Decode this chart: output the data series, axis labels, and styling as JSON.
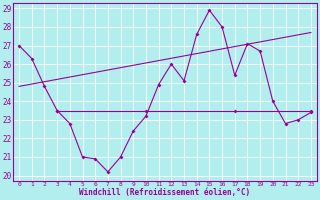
{
  "xlabel": "Windchill (Refroidissement éolien,°C)",
  "background_color": "#b2eeee",
  "line_color": "#990099",
  "grid_color": "#ffffff",
  "ylim": [
    20,
    29
  ],
  "xlim": [
    -0.5,
    23.5
  ],
  "yticks": [
    20,
    21,
    22,
    23,
    24,
    25,
    26,
    27,
    28,
    29
  ],
  "xticks": [
    0,
    1,
    2,
    3,
    4,
    5,
    6,
    7,
    8,
    9,
    10,
    11,
    12,
    13,
    14,
    15,
    16,
    17,
    18,
    19,
    20,
    21,
    22,
    23
  ],
  "xtick_labels": [
    "0",
    "1",
    "2",
    "3",
    "4",
    "5",
    "6",
    "7",
    "8",
    "9",
    "10",
    "11",
    "12",
    "13",
    "14",
    "15",
    "16",
    "17",
    "18",
    "19",
    "20",
    "21",
    "22",
    "23"
  ],
  "line1_x": [
    0,
    1,
    2,
    3,
    4,
    5,
    6,
    7,
    8,
    9,
    10,
    11,
    12,
    13,
    14,
    15,
    16,
    17,
    18,
    19,
    20,
    21,
    22,
    23
  ],
  "line1_y": [
    27.0,
    26.3,
    24.8,
    23.5,
    22.8,
    21.0,
    20.9,
    20.2,
    21.0,
    22.4,
    23.2,
    24.9,
    26.0,
    25.1,
    27.6,
    28.9,
    28.0,
    25.4,
    27.1,
    26.7,
    24.0,
    22.8,
    23.0,
    23.4
  ],
  "line2_x": [
    3,
    10,
    17,
    23
  ],
  "line2_y": [
    23.5,
    23.5,
    23.5,
    23.5
  ],
  "line3_x": [
    0,
    23
  ],
  "line3_y": [
    24.8,
    27.7
  ]
}
